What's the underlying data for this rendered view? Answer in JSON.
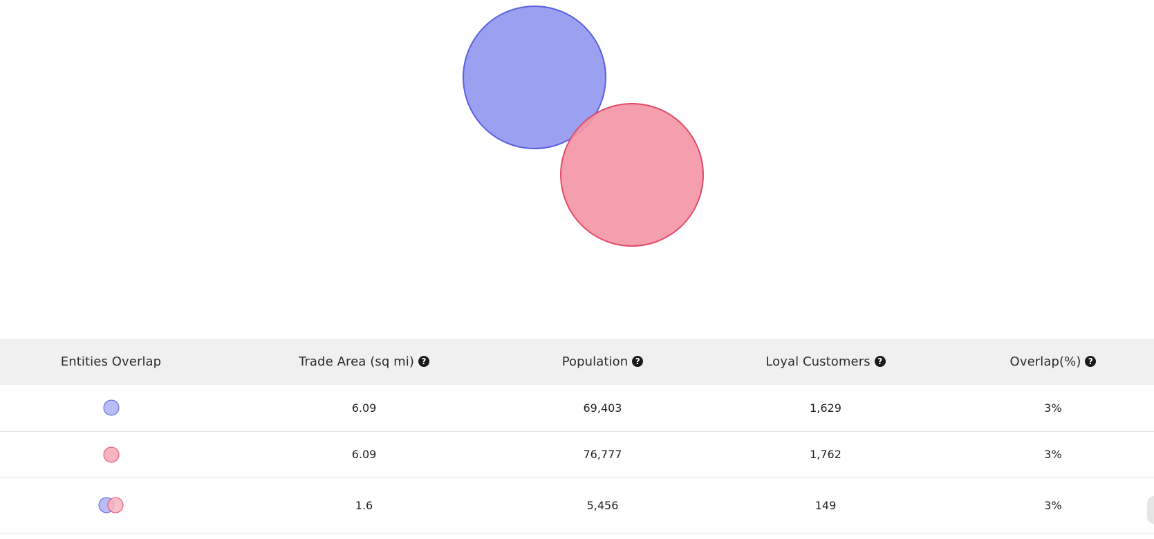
{
  "colors": {
    "entity_a_fill": "#9ca0f0",
    "entity_a_stroke": "#5a5fe0",
    "entity_b_fill": "#f497a7",
    "entity_b_stroke": "#e24a67",
    "header_bg": "#f0f0f0"
  },
  "venn": {
    "entities": [
      {
        "name": "entity-a",
        "color": "#9ca0f0"
      },
      {
        "name": "entity-b",
        "color": "#f497a7"
      }
    ]
  },
  "table": {
    "headers": {
      "entities": "Entities Overlap",
      "trade_area": "Trade Area (sq mi)",
      "population": "Population",
      "loyal_customers": "Loyal Customers",
      "overlap": "Overlap(%)"
    },
    "help_icon": "question-circle-icon",
    "help_glyph": "?",
    "rows": [
      {
        "entity_icon": "entity-a-dot-icon",
        "trade_area": "6.09",
        "population": "69,403",
        "loyal_customers": "1,629",
        "overlap": "3%"
      },
      {
        "entity_icon": "entity-b-dot-icon",
        "trade_area": "6.09",
        "population": "76,777",
        "loyal_customers": "1,762",
        "overlap": "3%"
      },
      {
        "entity_icon": "overlap-dots-icon",
        "trade_area": "1.6",
        "population": "5,456",
        "loyal_customers": "149",
        "overlap": "3%"
      }
    ]
  }
}
